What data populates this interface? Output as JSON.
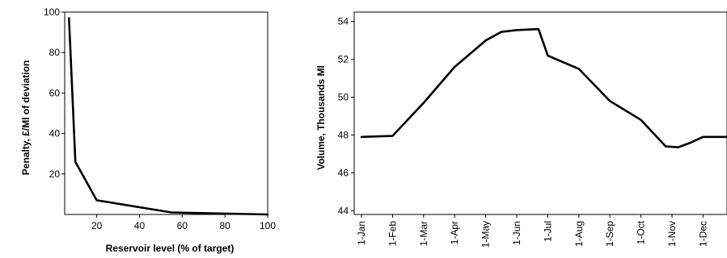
{
  "chart_data": [
    {
      "type": "line",
      "title": "",
      "xlabel": "Reservoir level (% of target)",
      "ylabel": "Penalty, £/Ml of deviation",
      "xlim": [
        5,
        100
      ],
      "ylim": [
        0,
        100
      ],
      "xticks": [
        "20",
        "40",
        "60",
        "80",
        "100"
      ],
      "yticks": [
        "20",
        "40",
        "60",
        "80",
        "100"
      ],
      "grid": false,
      "series": [
        {
          "x": [
            7,
            10,
            20,
            55,
            100
          ],
          "y": [
            97,
            26,
            7,
            1,
            0
          ]
        }
      ]
    },
    {
      "type": "line",
      "title": "",
      "xlabel": "",
      "ylabel": "Volume, Thousands Ml",
      "categories": [
        "1-Jan",
        "1-Feb",
        "1-Mar",
        "1-Apr",
        "1-May",
        "1-Jun",
        "1-Jul",
        "1-Aug",
        "1-Sep",
        "1-Oct",
        "1-Nov",
        "1-Dec"
      ],
      "ylim": [
        43.8,
        54.5
      ],
      "yticks": [
        "44",
        "46",
        "48",
        "50",
        "52",
        "54"
      ],
      "grid": false,
      "series": [
        {
          "x": [
            0,
            1,
            2,
            3,
            4,
            4.5,
            5,
            5.7,
            6,
            7,
            8,
            9,
            9.8,
            10.2,
            10.6,
            11,
            12
          ],
          "y": [
            47.9,
            47.95,
            49.7,
            51.6,
            53.0,
            53.45,
            53.55,
            53.6,
            52.2,
            51.5,
            49.8,
            48.8,
            47.4,
            47.35,
            47.6,
            47.9,
            47.9
          ]
        }
      ]
    }
  ]
}
